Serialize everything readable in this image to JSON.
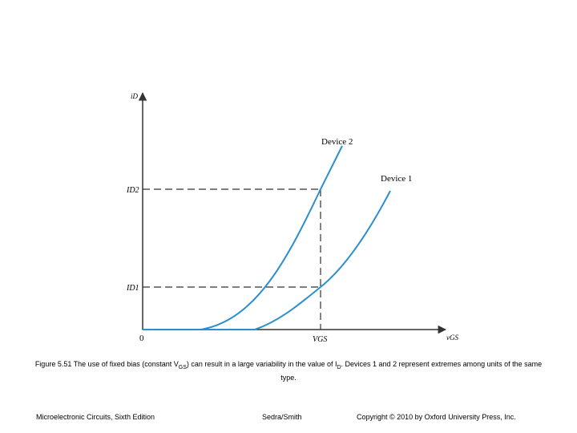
{
  "figure": {
    "axes": {
      "y_axis_label": "iD",
      "x_axis_label": "vGS",
      "origin_label": "0",
      "vgs_label": "VGS",
      "id2_label": "ID2",
      "id1_label": "ID1"
    },
    "curves": [
      {
        "label": "Device 2",
        "color": "#2a8fcf"
      },
      {
        "label": "Device 1",
        "color": "#2a8fcf"
      }
    ]
  },
  "caption": {
    "prefix": "Figure 5.51 The use of fixed bias (constant V",
    "vgs_sub": "GS",
    "middle": ") can result in a large variability in the value of I",
    "id_sub": "D",
    "suffix": ". Devices 1 and 2 represent extremes among units of the same type."
  },
  "footer": {
    "left": "Microelectronic Circuits, Sixth Edition",
    "center": "Sedra/Smith",
    "right": "Copyright © 2010 by Oxford University Press, Inc."
  }
}
